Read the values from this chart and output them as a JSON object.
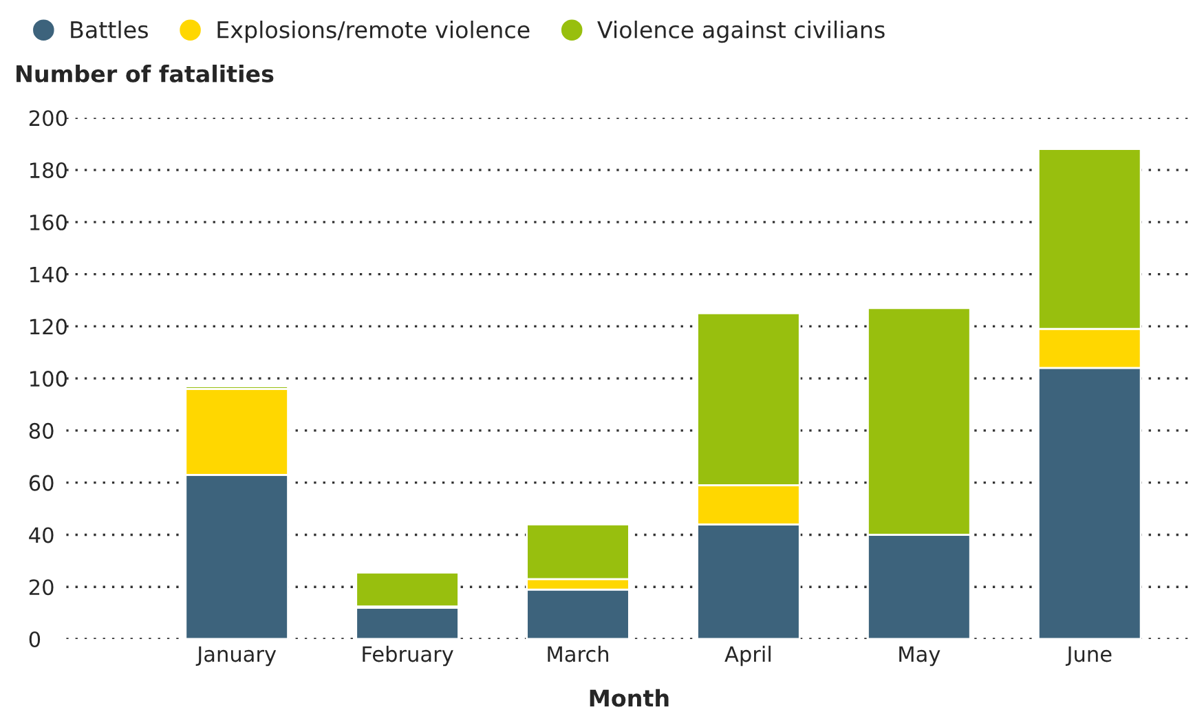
{
  "chart_data": {
    "type": "bar",
    "stacked": true,
    "ylabel": "Number of fatalities",
    "xlabel": "Month",
    "categories": [
      "January",
      "February",
      "March",
      "April",
      "May",
      "June"
    ],
    "series": [
      {
        "name": "Battles",
        "color": "#3d637c",
        "values": [
          63,
          12,
          19,
          44,
          40,
          104
        ]
      },
      {
        "name": "Explosions/remote violence",
        "color": "#ffd700",
        "values": [
          33,
          0.5,
          4,
          15,
          0,
          15
        ]
      },
      {
        "name": "Violence against civilians",
        "color": "#98bf0e",
        "values": [
          1,
          13,
          21,
          66,
          87,
          69
        ]
      }
    ],
    "ylim": [
      0,
      200
    ],
    "yticks": [
      0,
      20,
      40,
      60,
      80,
      100,
      120,
      140,
      160,
      180,
      200
    ],
    "grid": "y",
    "legend": "top left"
  }
}
